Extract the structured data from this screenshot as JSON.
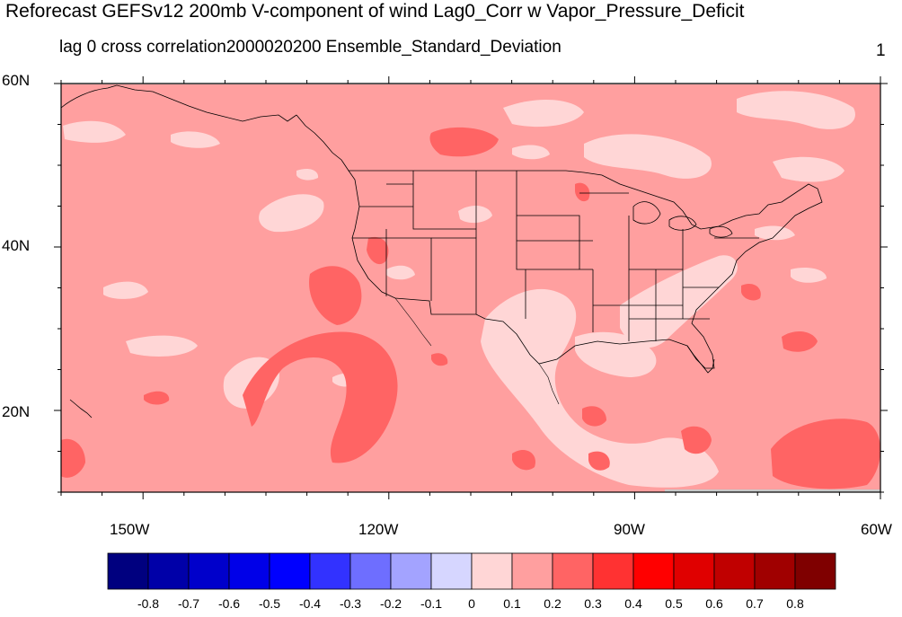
{
  "title": "Reforecast GEFSv12 200mb V-component of wind Lag0_Corr w Vapor_Pressure_Deficit",
  "subtitle_left": "lag 0 cross correlation2000020200 Ensemble_Standard_Deviation",
  "subtitle_right": "1",
  "map": {
    "lat_labels": [
      "60N",
      "40N",
      "20N"
    ],
    "lon_labels": [
      "150W",
      "120W",
      "90W",
      "60W"
    ],
    "lat_range": [
      10,
      60
    ],
    "lon_range": [
      -160,
      -60
    ],
    "base_fill_color": "#ff9f9f",
    "light_fill_color": "#ffd6d6",
    "dark_fill_color": "#ff6464",
    "boundary_color": "#000000"
  },
  "colorbar": {
    "levels": [
      "-0.8",
      "-0.7",
      "-0.6",
      "-0.5",
      "-0.4",
      "-0.3",
      "-0.2",
      "-0.1",
      "0",
      "0.1",
      "0.2",
      "0.3",
      "0.4",
      "0.5",
      "0.6",
      "0.7",
      "0.8"
    ],
    "colors": [
      "#00007f",
      "#0000a8",
      "#0000cb",
      "#0000e8",
      "#0000ff",
      "#3232ff",
      "#6e6eff",
      "#a3a3ff",
      "#d6d6ff",
      "#ffd6d6",
      "#ff9f9f",
      "#ff6464",
      "#ff3232",
      "#ff0000",
      "#e00000",
      "#c00000",
      "#a00000",
      "#7f0000"
    ]
  }
}
